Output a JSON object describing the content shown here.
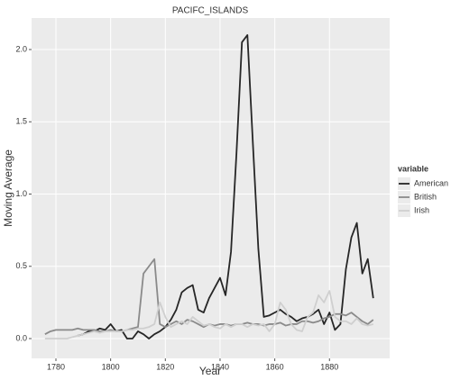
{
  "chart_data": {
    "type": "line",
    "title": "PACIFC_ISLANDS",
    "x_label": "Year",
    "y_label": "Moving Average",
    "legend_title": "variable",
    "x": [
      1776,
      1778,
      1780,
      1782,
      1784,
      1786,
      1788,
      1790,
      1792,
      1794,
      1796,
      1798,
      1800,
      1802,
      1804,
      1806,
      1808,
      1810,
      1812,
      1814,
      1816,
      1818,
      1820,
      1822,
      1824,
      1826,
      1828,
      1830,
      1832,
      1834,
      1836,
      1838,
      1840,
      1842,
      1844,
      1846,
      1848,
      1850,
      1852,
      1854,
      1856,
      1858,
      1860,
      1862,
      1864,
      1866,
      1868,
      1870,
      1872,
      1874,
      1876,
      1878,
      1880,
      1882,
      1884,
      1886,
      1888,
      1890,
      1892,
      1894,
      1896
    ],
    "series": [
      {
        "name": "American",
        "color": "#262626",
        "values": [
          null,
          null,
          null,
          null,
          null,
          null,
          0.02,
          0.03,
          0.05,
          0.05,
          0.07,
          0.06,
          0.1,
          0.05,
          0.06,
          0.0,
          0.0,
          0.05,
          0.03,
          0.0,
          0.03,
          0.05,
          0.08,
          0.13,
          0.2,
          0.32,
          0.35,
          0.37,
          0.2,
          0.18,
          0.28,
          0.35,
          0.42,
          0.3,
          0.6,
          1.28,
          2.05,
          2.1,
          1.35,
          0.62,
          0.15,
          0.16,
          0.18,
          0.2,
          0.17,
          0.15,
          0.12,
          0.14,
          0.15,
          0.17,
          0.2,
          0.1,
          0.18,
          0.06,
          0.1,
          0.48,
          0.7,
          0.8,
          0.45,
          0.55,
          0.28
        ]
      },
      {
        "name": "British",
        "color": "#8a8a8a",
        "values": [
          0.03,
          0.05,
          0.06,
          0.06,
          0.06,
          0.06,
          0.07,
          0.06,
          0.06,
          0.06,
          0.05,
          0.05,
          0.06,
          0.05,
          0.05,
          0.06,
          0.07,
          0.08,
          0.45,
          0.5,
          0.55,
          0.1,
          0.08,
          0.1,
          0.12,
          0.1,
          0.13,
          0.12,
          0.1,
          0.08,
          0.1,
          0.09,
          0.1,
          0.1,
          0.09,
          0.1,
          0.1,
          0.11,
          0.1,
          0.1,
          0.09,
          0.1,
          0.1,
          0.11,
          0.09,
          0.1,
          0.1,
          0.12,
          0.12,
          0.11,
          0.12,
          0.14,
          0.15,
          0.17,
          0.17,
          0.16,
          0.18,
          0.15,
          0.12,
          0.1,
          0.13
        ]
      },
      {
        "name": "Irish",
        "color": "#cfcfcf",
        "values": [
          0.0,
          0.0,
          0.0,
          0.0,
          0.0,
          0.01,
          0.02,
          0.03,
          0.04,
          0.05,
          0.04,
          0.05,
          0.05,
          0.05,
          0.05,
          0.06,
          0.06,
          0.07,
          0.07,
          0.08,
          0.1,
          0.25,
          0.15,
          0.08,
          0.1,
          0.12,
          0.1,
          0.15,
          0.12,
          0.09,
          0.1,
          0.08,
          0.07,
          0.1,
          0.08,
          0.1,
          0.1,
          0.08,
          0.1,
          0.09,
          0.1,
          0.05,
          0.1,
          0.25,
          0.2,
          0.1,
          0.06,
          0.05,
          0.15,
          0.18,
          0.3,
          0.25,
          0.33,
          0.15,
          0.12,
          0.12,
          0.1,
          0.14,
          0.1,
          0.09,
          0.1
        ]
      }
    ],
    "xlim": [
      1771.1,
      1902
    ],
    "xticks": [
      1780,
      1800,
      1820,
      1840,
      1860,
      1880
    ],
    "ylim": [
      -0.137,
      2.218
    ],
    "yticks": [
      {
        "value": 0,
        "label": "0.0"
      },
      0.5,
      {
        "value": 1,
        "label": "1.0"
      },
      1.5,
      {
        "value": 2,
        "label": "2.0"
      }
    ],
    "grid": true
  }
}
